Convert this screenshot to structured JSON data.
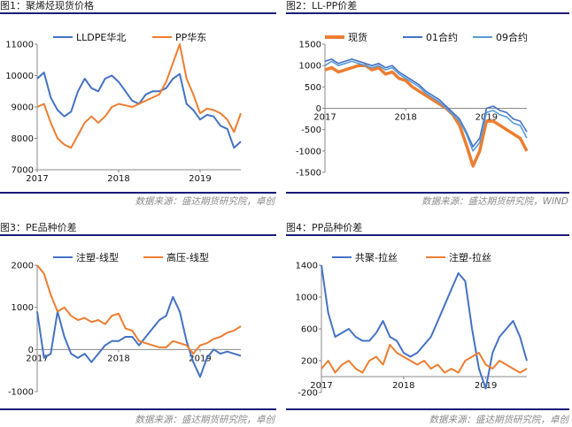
{
  "panels": [
    {
      "title": "图1：聚烯烃现货价格",
      "source": "数据来源：盛达期货研究院，卓创"
    },
    {
      "title": "图2：LL-PP价差",
      "source": "数据来源：盛达期货研究院，WIND"
    },
    {
      "title": "图3：PE品种价差",
      "source": "数据来源：盛达期货研究院，卓创"
    },
    {
      "title": "图4：PP品种价差",
      "source": "数据来源：盛达期货研究院，卓创"
    }
  ],
  "colors": {
    "blue": "#4472c4",
    "orange": "#ed7d31",
    "lightblue": "#5b9bd5",
    "rule": "#1a1a7a"
  },
  "chart_data": [
    {
      "type": "line",
      "title": "",
      "xlabel": "",
      "ylabel": "",
      "x_ticks": [
        "2017",
        "2018",
        "2019"
      ],
      "ylim": [
        7000,
        11000
      ],
      "y_ticks": [
        7000,
        8000,
        9000,
        10000,
        11000
      ],
      "grid": false,
      "legend": "top",
      "series": [
        {
          "name": "LLDPE华北",
          "color": "#4472c4",
          "x": [
            "2017-01",
            "2017-02",
            "2017-03",
            "2017-04",
            "2017-05",
            "2017-06",
            "2017-07",
            "2017-08",
            "2017-09",
            "2017-10",
            "2017-11",
            "2017-12",
            "2018-01",
            "2018-02",
            "2018-03",
            "2018-04",
            "2018-05",
            "2018-06",
            "2018-07",
            "2018-08",
            "2018-09",
            "2018-10",
            "2018-11",
            "2018-12",
            "2019-01",
            "2019-02",
            "2019-03",
            "2019-04",
            "2019-05",
            "2019-06",
            "2019-07"
          ],
          "values": [
            9900,
            10100,
            9300,
            8900,
            8700,
            8850,
            9500,
            9900,
            9600,
            9500,
            9900,
            10000,
            9800,
            9500,
            9200,
            9100,
            9400,
            9500,
            9500,
            9600,
            9900,
            10050,
            9100,
            8900,
            8600,
            8750,
            8700,
            8400,
            8300,
            7700,
            7900
          ]
        },
        {
          "name": "PP华东",
          "color": "#ed7d31",
          "x": [
            "2017-01",
            "2017-02",
            "2017-03",
            "2017-04",
            "2017-05",
            "2017-06",
            "2017-07",
            "2017-08",
            "2017-09",
            "2017-10",
            "2017-11",
            "2017-12",
            "2018-01",
            "2018-02",
            "2018-03",
            "2018-04",
            "2018-05",
            "2018-06",
            "2018-07",
            "2018-08",
            "2018-09",
            "2018-10",
            "2018-11",
            "2018-12",
            "2019-01",
            "2019-02",
            "2019-03",
            "2019-04",
            "2019-05",
            "2019-06",
            "2019-07"
          ],
          "values": [
            9000,
            9100,
            8500,
            8000,
            7800,
            7700,
            8100,
            8500,
            8700,
            8500,
            8700,
            9000,
            9100,
            9050,
            9000,
            9100,
            9200,
            9300,
            9400,
            9800,
            10400,
            11000,
            9900,
            9400,
            8800,
            8950,
            8900,
            8800,
            8600,
            8200,
            8800
          ]
        }
      ]
    },
    {
      "type": "line",
      "title": "",
      "xlabel": "",
      "ylabel": "",
      "x_ticks": [
        "2017",
        "2018",
        "2019"
      ],
      "ylim": [
        -1500,
        1500
      ],
      "y_ticks": [
        -1500,
        -1000,
        -500,
        0,
        500,
        1000,
        1500
      ],
      "grid": false,
      "legend": "top",
      "series": [
        {
          "name": "现货",
          "color": "#ed7d31",
          "x": [
            "2017-01",
            "2017-02",
            "2017-03",
            "2017-04",
            "2017-05",
            "2017-06",
            "2017-07",
            "2017-08",
            "2017-09",
            "2017-10",
            "2017-11",
            "2017-12",
            "2018-01",
            "2018-02",
            "2018-03",
            "2018-04",
            "2018-05",
            "2018-06",
            "2018-07",
            "2018-08",
            "2018-09",
            "2018-10",
            "2018-11",
            "2018-12",
            "2019-01",
            "2019-02",
            "2019-03",
            "2019-04",
            "2019-05",
            "2019-06",
            "2019-07"
          ],
          "values": [
            900,
            950,
            850,
            900,
            950,
            1000,
            1000,
            900,
            950,
            800,
            850,
            700,
            650,
            500,
            400,
            300,
            200,
            100,
            0,
            -150,
            -400,
            -850,
            -1350,
            -1000,
            -300,
            -300,
            -400,
            -500,
            -600,
            -700,
            -1000
          ]
        },
        {
          "name": "01合约",
          "color": "#4472c4",
          "x": [
            "2017-01",
            "2017-02",
            "2017-03",
            "2017-04",
            "2017-05",
            "2017-06",
            "2017-07",
            "2017-08",
            "2017-09",
            "2017-10",
            "2017-11",
            "2017-12",
            "2018-01",
            "2018-02",
            "2018-03",
            "2018-04",
            "2018-05",
            "2018-06",
            "2018-07",
            "2018-08",
            "2018-09",
            "2018-10",
            "2018-11",
            "2018-12",
            "2019-01",
            "2019-02",
            "2019-03",
            "2019-04",
            "2019-05",
            "2019-06",
            "2019-07"
          ],
          "values": [
            1100,
            1150,
            1050,
            1100,
            1150,
            1100,
            1050,
            1000,
            1050,
            950,
            1000,
            850,
            750,
            650,
            550,
            400,
            300,
            200,
            50,
            -100,
            -250,
            -550,
            -900,
            -700,
            0,
            50,
            -50,
            -100,
            -250,
            -300,
            -550
          ]
        },
        {
          "name": "09合约",
          "color": "#5b9bd5",
          "x": [
            "2017-01",
            "2017-02",
            "2017-03",
            "2017-04",
            "2017-05",
            "2017-06",
            "2017-07",
            "2017-08",
            "2017-09",
            "2017-10",
            "2017-11",
            "2017-12",
            "2018-01",
            "2018-02",
            "2018-03",
            "2018-04",
            "2018-05",
            "2018-06",
            "2018-07",
            "2018-08",
            "2018-09",
            "2018-10",
            "2018-11",
            "2018-12",
            "2019-01",
            "2019-02",
            "2019-03",
            "2019-04",
            "2019-05",
            "2019-06",
            "2019-07"
          ],
          "values": [
            1000,
            1100,
            1000,
            1050,
            1100,
            1050,
            1000,
            950,
            1000,
            900,
            950,
            800,
            700,
            600,
            500,
            350,
            250,
            150,
            0,
            -150,
            -300,
            -600,
            -1000,
            -800,
            -100,
            -50,
            -150,
            -200,
            -350,
            -400,
            -700
          ]
        }
      ]
    },
    {
      "type": "line",
      "title": "",
      "xlabel": "",
      "ylabel": "",
      "x_ticks": [
        "2017",
        "2018",
        "2019"
      ],
      "ylim": [
        -1000,
        2000
      ],
      "y_ticks": [
        -1000,
        0,
        1000,
        2000
      ],
      "grid": false,
      "legend": "top",
      "series": [
        {
          "name": "注塑-线型",
          "color": "#4472c4",
          "x": [
            "2017-01",
            "2017-02",
            "2017-03",
            "2017-04",
            "2017-05",
            "2017-06",
            "2017-07",
            "2017-08",
            "2017-09",
            "2017-10",
            "2017-11",
            "2017-12",
            "2018-01",
            "2018-02",
            "2018-03",
            "2018-04",
            "2018-05",
            "2018-06",
            "2018-07",
            "2018-08",
            "2018-09",
            "2018-10",
            "2018-11",
            "2018-12",
            "2019-01",
            "2019-02",
            "2019-03",
            "2019-04",
            "2019-05",
            "2019-06",
            "2019-07"
          ],
          "values": [
            900,
            -200,
            -100,
            900,
            300,
            -100,
            -200,
            -100,
            -300,
            -100,
            100,
            200,
            200,
            300,
            300,
            100,
            300,
            500,
            700,
            800,
            1250,
            900,
            200,
            -300,
            -650,
            -200,
            0,
            -100,
            -50,
            -100,
            -150
          ]
        },
        {
          "name": "高压-线型",
          "color": "#ed7d31",
          "x": [
            "2017-01",
            "2017-02",
            "2017-03",
            "2017-04",
            "2017-05",
            "2017-06",
            "2017-07",
            "2017-08",
            "2017-09",
            "2017-10",
            "2017-11",
            "2017-12",
            "2018-01",
            "2018-02",
            "2018-03",
            "2018-04",
            "2018-05",
            "2018-06",
            "2018-07",
            "2018-08",
            "2018-09",
            "2018-10",
            "2018-11",
            "2018-12",
            "2019-01",
            "2019-02",
            "2019-03",
            "2019-04",
            "2019-05",
            "2019-06",
            "2019-07"
          ],
          "values": [
            2000,
            1800,
            1300,
            900,
            1000,
            800,
            700,
            750,
            650,
            700,
            600,
            800,
            850,
            500,
            450,
            200,
            150,
            100,
            50,
            50,
            200,
            150,
            100,
            -100,
            100,
            150,
            250,
            300,
            400,
            450,
            550
          ]
        }
      ]
    },
    {
      "type": "line",
      "title": "",
      "xlabel": "",
      "ylabel": "",
      "x_ticks": [
        "2017",
        "2018",
        "2019"
      ],
      "ylim": [
        -200,
        1400
      ],
      "y_ticks": [
        -200,
        200,
        600,
        1000,
        1400
      ],
      "grid": false,
      "legend": "top",
      "series": [
        {
          "name": "共聚-拉丝",
          "color": "#4472c4",
          "x": [
            "2017-01",
            "2017-02",
            "2017-03",
            "2017-04",
            "2017-05",
            "2017-06",
            "2017-07",
            "2017-08",
            "2017-09",
            "2017-10",
            "2017-11",
            "2017-12",
            "2018-01",
            "2018-02",
            "2018-03",
            "2018-04",
            "2018-05",
            "2018-06",
            "2018-07",
            "2018-08",
            "2018-09",
            "2018-10",
            "2018-11",
            "2018-12",
            "2019-01",
            "2019-02",
            "2019-03",
            "2019-04",
            "2019-05",
            "2019-06",
            "2019-07"
          ],
          "values": [
            1400,
            800,
            500,
            550,
            600,
            500,
            450,
            450,
            550,
            700,
            500,
            450,
            300,
            250,
            300,
            400,
            500,
            700,
            900,
            1100,
            1300,
            1200,
            600,
            100,
            -150,
            300,
            500,
            600,
            700,
            500,
            200
          ]
        },
        {
          "name": "注塑-拉丝",
          "color": "#ed7d31",
          "x": [
            "2017-01",
            "2017-02",
            "2017-03",
            "2017-04",
            "2017-05",
            "2017-06",
            "2017-07",
            "2017-08",
            "2017-09",
            "2017-10",
            "2017-11",
            "2017-12",
            "2018-01",
            "2018-02",
            "2018-03",
            "2018-04",
            "2018-05",
            "2018-06",
            "2018-07",
            "2018-08",
            "2018-09",
            "2018-10",
            "2018-11",
            "2018-12",
            "2019-01",
            "2019-02",
            "2019-03",
            "2019-04",
            "2019-05",
            "2019-06",
            "2019-07"
          ],
          "values": [
            100,
            200,
            50,
            150,
            200,
            100,
            50,
            200,
            250,
            150,
            400,
            300,
            250,
            200,
            150,
            200,
            100,
            150,
            50,
            100,
            50,
            200,
            250,
            300,
            150,
            100,
            200,
            150,
            100,
            50,
            100
          ]
        }
      ]
    }
  ]
}
